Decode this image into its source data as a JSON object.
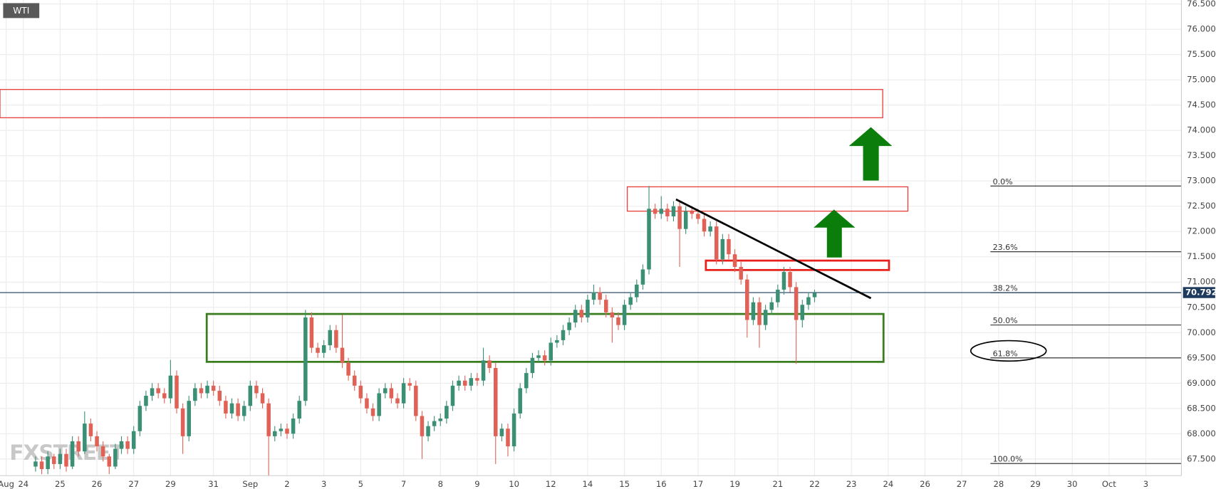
{
  "chart_data": {
    "type": "candlestick",
    "title": "WTI",
    "watermark": "FXSTREET",
    "up_color": "#3a8f74",
    "down_color": "#e06257",
    "grid": true,
    "xlim": [
      -3.8,
      188.8
    ],
    "ylim": [
      67.17,
      76.58
    ],
    "xticks": [
      {
        "value": -2.8,
        "label": "Aug"
      },
      {
        "value": 0,
        "label": "24"
      },
      {
        "value": 6,
        "label": "25"
      },
      {
        "value": 12,
        "label": "26"
      },
      {
        "value": 18,
        "label": "27"
      },
      {
        "value": 24,
        "label": "29"
      },
      {
        "value": 31,
        "label": "31"
      },
      {
        "value": 37,
        "label": "Sep"
      },
      {
        "value": 43,
        "label": "2"
      },
      {
        "value": 49,
        "label": "3"
      },
      {
        "value": 55,
        "label": "5"
      },
      {
        "value": 62,
        "label": "7"
      },
      {
        "value": 68,
        "label": "8"
      },
      {
        "value": 74,
        "label": "9"
      },
      {
        "value": 80,
        "label": "10"
      },
      {
        "value": 86,
        "label": "12"
      },
      {
        "value": 92,
        "label": "14"
      },
      {
        "value": 98,
        "label": "15"
      },
      {
        "value": 104,
        "label": "16"
      },
      {
        "value": 110,
        "label": "17"
      },
      {
        "value": 116,
        "label": "19"
      },
      {
        "value": 123,
        "label": "21"
      },
      {
        "value": 129,
        "label": "22"
      },
      {
        "value": 135,
        "label": "23"
      },
      {
        "value": 141,
        "label": "24"
      },
      {
        "value": 147,
        "label": "26"
      },
      {
        "value": 153,
        "label": "27"
      },
      {
        "value": 159,
        "label": "28"
      },
      {
        "value": 165,
        "label": "29"
      },
      {
        "value": 171,
        "label": "30"
      },
      {
        "value": 177,
        "label": "Oct"
      },
      {
        "value": 183,
        "label": "3"
      }
    ],
    "yticks": [
      {
        "value": 67.5,
        "label": "67.500"
      },
      {
        "value": 68,
        "label": "68.000"
      },
      {
        "value": 68.5,
        "label": "68.500"
      },
      {
        "value": 69,
        "label": "69.000"
      },
      {
        "value": 69.5,
        "label": "69.500"
      },
      {
        "value": 70,
        "label": "70.000"
      },
      {
        "value": 70.5,
        "label": "70.500"
      },
      {
        "value": 71,
        "label": "71.000"
      },
      {
        "value": 71.5,
        "label": "71.500"
      },
      {
        "value": 72,
        "label": "72.000"
      },
      {
        "value": 72.5,
        "label": "72.500"
      },
      {
        "value": 73,
        "label": "73.000"
      },
      {
        "value": 73.5,
        "label": "73.500"
      },
      {
        "value": 74,
        "label": "74.000"
      },
      {
        "value": 74.5,
        "label": "74.500"
      },
      {
        "value": 75,
        "label": "75.000"
      },
      {
        "value": 75.5,
        "label": "75.500"
      },
      {
        "value": 76,
        "label": "76.000"
      },
      {
        "value": 76.5,
        "label": "76.500"
      }
    ],
    "last_price": {
      "value": 70.792,
      "label": "70.792"
    },
    "fib_levels": [
      {
        "label": "0.0%",
        "value": 72.9
      },
      {
        "label": "23.6%",
        "value": 71.6
      },
      {
        "label": "38.2%",
        "value": 70.79
      },
      {
        "label": "50.0%",
        "value": 70.15
      },
      {
        "label": "61.8%",
        "value": 69.5
      },
      {
        "label": "100.0%",
        "value": 67.41
      }
    ],
    "x": [
      2,
      3,
      4,
      5,
      6,
      7,
      8,
      9,
      10,
      11,
      12,
      13,
      14,
      15,
      16,
      17,
      18,
      19,
      20,
      21,
      22,
      23,
      24,
      25,
      26,
      27,
      28,
      29,
      30,
      31,
      32,
      33,
      34,
      35,
      36,
      37,
      38,
      39,
      40,
      41,
      42,
      43,
      44,
      45,
      46,
      47,
      48,
      49,
      50,
      51,
      52,
      53,
      54,
      55,
      56,
      57,
      58,
      59,
      60,
      61,
      62,
      63,
      64,
      65,
      66,
      67,
      68,
      69,
      70,
      71,
      72,
      73,
      74,
      75,
      76,
      77,
      78,
      79,
      80,
      81,
      82,
      83,
      84,
      85,
      86,
      87,
      88,
      89,
      90,
      91,
      92,
      93,
      94,
      95,
      96,
      97,
      98,
      99,
      100,
      101,
      102,
      103,
      104,
      105,
      106,
      107,
      108,
      109,
      110,
      111,
      112,
      113,
      114,
      115,
      116,
      117,
      118,
      119,
      120,
      121,
      122,
      123,
      124,
      125,
      126,
      127,
      128,
      129
    ],
    "ohlc": [
      [
        67.35,
        67.55,
        67.25,
        67.45
      ],
      [
        67.45,
        67.55,
        67.2,
        67.3
      ],
      [
        67.3,
        67.65,
        67.2,
        67.55
      ],
      [
        67.55,
        67.6,
        67.3,
        67.4
      ],
      [
        67.4,
        67.7,
        67.3,
        67.6
      ],
      [
        67.6,
        67.7,
        67.25,
        67.35
      ],
      [
        67.35,
        67.95,
        67.3,
        67.85
      ],
      [
        67.85,
        67.95,
        67.55,
        67.65
      ],
      [
        67.65,
        68.44,
        67.6,
        68.2
      ],
      [
        68.2,
        68.3,
        67.85,
        67.95
      ],
      [
        67.95,
        68.05,
        67.65,
        67.75
      ],
      [
        67.75,
        67.85,
        67.45,
        67.55
      ],
      [
        67.55,
        67.6,
        67.2,
        67.35
      ],
      [
        67.35,
        67.8,
        67.3,
        67.7
      ],
      [
        67.7,
        67.95,
        67.6,
        67.85
      ],
      [
        67.85,
        67.95,
        67.6,
        67.7
      ],
      [
        67.7,
        68.15,
        67.6,
        68.05
      ],
      [
        68.05,
        68.65,
        67.95,
        68.55
      ],
      [
        68.55,
        68.85,
        68.45,
        68.75
      ],
      [
        68.75,
        69.0,
        68.65,
        68.9
      ],
      [
        68.9,
        69.0,
        68.7,
        68.8
      ],
      [
        68.8,
        68.9,
        68.6,
        68.7
      ],
      [
        68.7,
        69.46,
        68.6,
        69.15
      ],
      [
        69.15,
        69.25,
        68.4,
        68.5
      ],
      [
        68.5,
        68.6,
        67.6,
        67.95
      ],
      [
        67.95,
        68.75,
        67.85,
        68.65
      ],
      [
        68.65,
        69.0,
        68.55,
        68.9
      ],
      [
        68.9,
        69.0,
        68.7,
        68.8
      ],
      [
        68.8,
        69.05,
        68.7,
        68.95
      ],
      [
        68.95,
        69.05,
        68.75,
        68.85
      ],
      [
        68.85,
        68.95,
        68.55,
        68.65
      ],
      [
        68.65,
        68.75,
        68.3,
        68.4
      ],
      [
        68.4,
        68.7,
        68.3,
        68.6
      ],
      [
        68.6,
        68.7,
        68.25,
        68.35
      ],
      [
        68.35,
        68.65,
        68.25,
        68.55
      ],
      [
        68.55,
        69.05,
        68.45,
        68.95
      ],
      [
        68.95,
        69.05,
        68.7,
        68.8
      ],
      [
        68.8,
        68.9,
        68.5,
        68.6
      ],
      [
        68.6,
        68.7,
        67.15,
        67.95
      ],
      [
        67.95,
        68.15,
        67.85,
        68.05
      ],
      [
        68.05,
        68.2,
        67.95,
        68.1
      ],
      [
        68.1,
        68.2,
        67.9,
        68.0
      ],
      [
        68.0,
        68.4,
        67.9,
        68.3
      ],
      [
        68.3,
        68.75,
        68.2,
        68.65
      ],
      [
        68.65,
        70.45,
        68.55,
        70.3
      ],
      [
        70.3,
        70.4,
        69.6,
        69.7
      ],
      [
        69.7,
        69.8,
        69.5,
        69.6
      ],
      [
        69.6,
        69.85,
        69.5,
        69.75
      ],
      [
        69.75,
        70.15,
        69.65,
        70.05
      ],
      [
        70.05,
        70.15,
        69.6,
        69.7
      ],
      [
        69.7,
        70.35,
        69.3,
        69.4
      ],
      [
        69.4,
        69.5,
        69.05,
        69.15
      ],
      [
        69.15,
        69.25,
        68.85,
        68.95
      ],
      [
        68.95,
        69.05,
        68.6,
        68.7
      ],
      [
        68.7,
        68.8,
        68.4,
        68.5
      ],
      [
        68.5,
        68.6,
        68.25,
        68.35
      ],
      [
        68.35,
        68.9,
        68.25,
        68.8
      ],
      [
        68.8,
        69.0,
        68.7,
        68.9
      ],
      [
        68.9,
        69.0,
        68.6,
        68.7
      ],
      [
        68.7,
        68.8,
        68.5,
        68.6
      ],
      [
        68.6,
        69.1,
        68.5,
        69.0
      ],
      [
        69.0,
        69.1,
        68.85,
        68.95
      ],
      [
        68.95,
        69.05,
        68.25,
        68.35
      ],
      [
        68.35,
        68.45,
        67.5,
        67.95
      ],
      [
        67.95,
        68.25,
        67.85,
        68.15
      ],
      [
        68.15,
        68.35,
        68.05,
        68.25
      ],
      [
        68.25,
        68.4,
        68.15,
        68.3
      ],
      [
        68.3,
        68.65,
        68.2,
        68.55
      ],
      [
        68.55,
        69.05,
        68.45,
        68.95
      ],
      [
        68.95,
        69.15,
        68.85,
        69.05
      ],
      [
        69.05,
        69.15,
        68.85,
        68.95
      ],
      [
        68.95,
        69.2,
        68.85,
        69.1
      ],
      [
        69.1,
        69.2,
        68.95,
        69.05
      ],
      [
        69.05,
        69.7,
        68.95,
        69.45
      ],
      [
        69.45,
        69.55,
        69.2,
        69.3
      ],
      [
        69.3,
        69.4,
        67.4,
        67.95
      ],
      [
        67.95,
        68.2,
        67.85,
        68.1
      ],
      [
        68.1,
        68.2,
        67.55,
        67.75
      ],
      [
        67.75,
        68.5,
        67.65,
        68.4
      ],
      [
        68.4,
        69.0,
        68.3,
        68.9
      ],
      [
        68.9,
        69.3,
        68.8,
        69.2
      ],
      [
        69.2,
        69.6,
        69.1,
        69.5
      ],
      [
        69.5,
        69.65,
        69.4,
        69.55
      ],
      [
        69.55,
        69.65,
        69.35,
        69.45
      ],
      [
        69.45,
        69.9,
        69.35,
        69.8
      ],
      [
        69.8,
        69.95,
        69.7,
        69.85
      ],
      [
        69.85,
        70.15,
        69.75,
        70.05
      ],
      [
        70.05,
        70.3,
        69.95,
        70.2
      ],
      [
        70.2,
        70.55,
        70.1,
        70.45
      ],
      [
        70.45,
        70.55,
        70.2,
        70.3
      ],
      [
        70.3,
        70.75,
        70.2,
        70.65
      ],
      [
        70.65,
        70.95,
        70.55,
        70.8
      ],
      [
        70.8,
        70.9,
        70.55,
        70.65
      ],
      [
        70.65,
        70.75,
        70.3,
        70.4
      ],
      [
        70.4,
        70.5,
        69.8,
        70.3
      ],
      [
        70.3,
        70.4,
        70.05,
        70.15
      ],
      [
        70.15,
        70.65,
        70.05,
        70.55
      ],
      [
        70.55,
        70.8,
        70.45,
        70.7
      ],
      [
        70.7,
        71.05,
        70.6,
        70.95
      ],
      [
        70.95,
        71.35,
        70.85,
        71.25
      ],
      [
        71.25,
        72.9,
        71.15,
        72.45
      ],
      [
        72.45,
        72.55,
        72.25,
        72.35
      ],
      [
        72.35,
        72.7,
        72.25,
        72.45
      ],
      [
        72.45,
        72.55,
        72.2,
        72.3
      ],
      [
        72.3,
        72.6,
        72.2,
        72.5
      ],
      [
        72.5,
        72.6,
        71.3,
        72.05
      ],
      [
        72.05,
        72.5,
        71.95,
        72.4
      ],
      [
        72.4,
        72.5,
        72.25,
        72.35
      ],
      [
        72.35,
        72.45,
        72.15,
        72.25
      ],
      [
        72.25,
        72.35,
        71.9,
        72.0
      ],
      [
        72.0,
        72.2,
        71.9,
        72.1
      ],
      [
        72.1,
        72.2,
        71.35,
        71.45
      ],
      [
        71.45,
        71.95,
        71.35,
        71.85
      ],
      [
        71.85,
        71.95,
        71.45,
        71.55
      ],
      [
        71.55,
        71.65,
        71.2,
        71.3
      ],
      [
        71.3,
        71.4,
        70.95,
        71.05
      ],
      [
        71.05,
        71.15,
        69.9,
        70.25
      ],
      [
        70.25,
        70.7,
        70.15,
        70.6
      ],
      [
        70.6,
        70.7,
        69.7,
        70.15
      ],
      [
        70.15,
        70.55,
        70.05,
        70.45
      ],
      [
        70.45,
        70.7,
        70.35,
        70.6
      ],
      [
        70.6,
        70.95,
        70.5,
        70.85
      ],
      [
        70.85,
        71.3,
        70.75,
        71.2
      ],
      [
        71.2,
        71.3,
        70.8,
        70.9
      ],
      [
        70.9,
        71.0,
        69.38,
        70.25
      ],
      [
        70.25,
        70.65,
        70.1,
        70.55
      ],
      [
        70.55,
        70.8,
        70.45,
        70.7
      ],
      [
        70.7,
        70.85,
        70.6,
        70.79
      ]
    ]
  }
}
